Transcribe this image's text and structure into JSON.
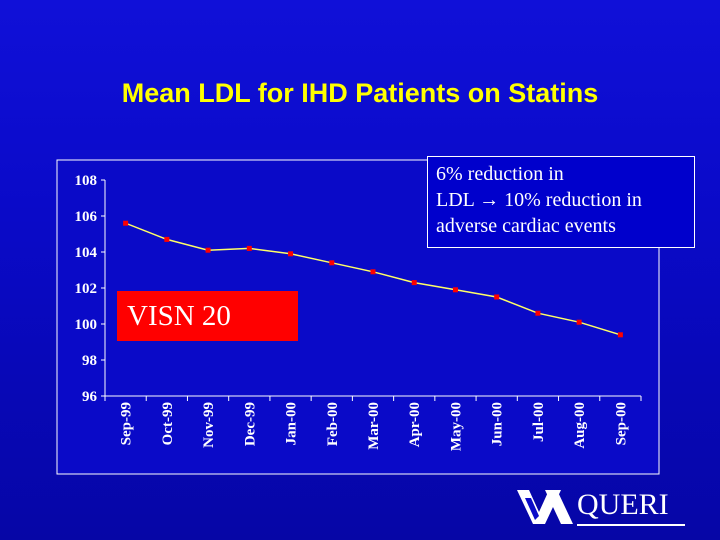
{
  "title": "Mean LDL for IHD Patients on Statins",
  "chart_data": {
    "type": "line",
    "categories": [
      "Sep-99",
      "Oct-99",
      "Nov-99",
      "Dec-99",
      "Jan-00",
      "Feb-00",
      "Mar-00",
      "Apr-00",
      "May-00",
      "Jun-00",
      "Jul-00",
      "Aug-00",
      "Sep-00"
    ],
    "series": [
      {
        "values": [
          105.6,
          104.7,
          104.1,
          104.2,
          103.9,
          103.4,
          102.9,
          102.3,
          101.9,
          101.5,
          100.6,
          100.1,
          99.4
        ]
      }
    ],
    "yticks": [
      96,
      98,
      100,
      102,
      104,
      106,
      108
    ],
    "ylim": [
      96,
      108
    ],
    "line_color": "#ffff66",
    "marker_color": "#ff0000",
    "grid": false
  },
  "callout": {
    "line1": "6% reduction in",
    "line2_start": "LDL ",
    "arrow": "→",
    "line2_end": " 10% reduction in",
    "line3": "adverse cardiac events"
  },
  "label": "VISN 20",
  "logo": {
    "text": "QUERI",
    "icon": "va-logo-icon"
  }
}
